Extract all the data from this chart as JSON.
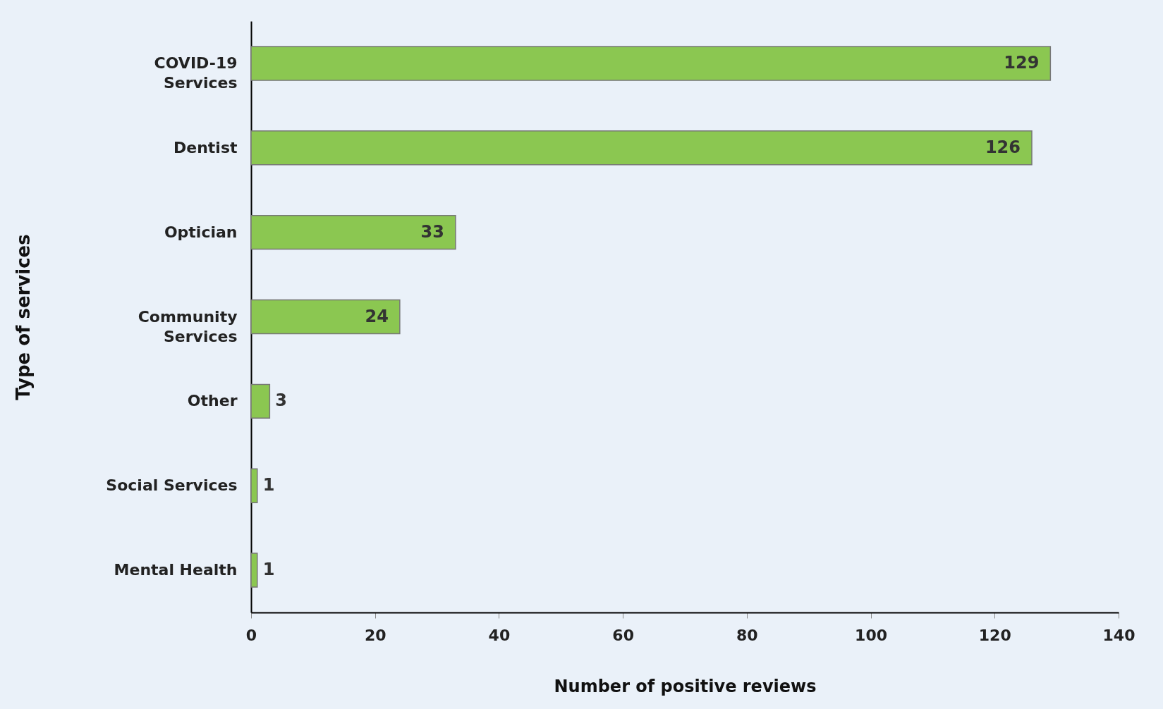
{
  "chart_data": {
    "type": "bar",
    "orientation": "horizontal",
    "xlabel": "Number of positive reviews",
    "ylabel": "Type of services",
    "categories": [
      "COVID-19\nServices",
      "Dentist",
      "Optician",
      "Community\nServices",
      "Other",
      "Social Services",
      "Mental Health"
    ],
    "values": [
      129,
      126,
      33,
      24,
      3,
      1,
      1
    ],
    "color": "#8bc751",
    "xlim": [
      0,
      140
    ],
    "xticks": [
      0,
      20,
      40,
      60,
      80,
      100,
      120,
      140
    ],
    "grid": false,
    "data_labels": true
  }
}
